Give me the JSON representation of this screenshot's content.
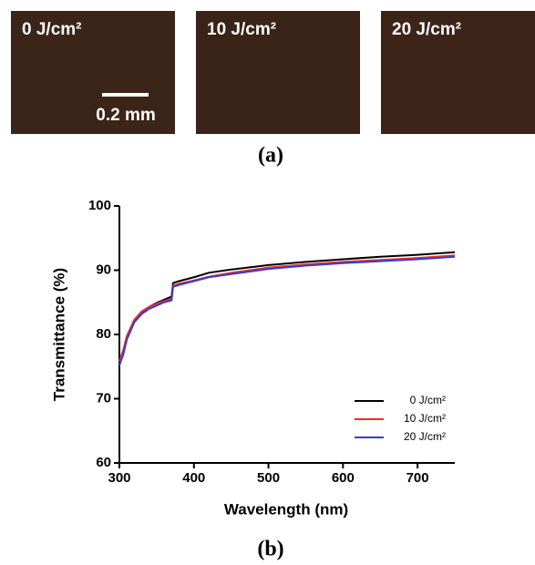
{
  "panel_a": {
    "label": "(a)",
    "images": [
      {
        "label": "0 J/cm²"
      },
      {
        "label": "10 J/cm²"
      },
      {
        "label": "20 J/cm²"
      }
    ],
    "scale_bar": "0.2 mm"
  },
  "panel_b": {
    "label": "(b)"
  },
  "chart_data": {
    "type": "line",
    "x_label": "Wavelength (nm)",
    "y_label": "Transmittance (%)",
    "x": [
      300,
      305,
      310,
      320,
      330,
      340,
      350,
      360,
      370,
      372,
      380,
      400,
      420,
      450,
      500,
      550,
      600,
      650,
      700,
      750
    ],
    "series": [
      {
        "name": "0 J/cm²",
        "color": "#000000",
        "values": [
          75.5,
          77.2,
          79.6,
          82.2,
          83.5,
          84.3,
          84.9,
          85.4,
          85.9,
          88.0,
          88.3,
          88.9,
          89.6,
          90.1,
          90.8,
          91.3,
          91.7,
          92.1,
          92.4,
          92.8
        ]
      },
      {
        "name": "10 J/cm²",
        "color": "#e8302c",
        "values": [
          75.8,
          77.5,
          79.8,
          82.3,
          83.6,
          84.3,
          84.8,
          85.2,
          85.6,
          87.6,
          87.9,
          88.4,
          89.0,
          89.6,
          90.4,
          90.9,
          91.3,
          91.6,
          91.9,
          92.3
        ]
      },
      {
        "name": "20 J/cm²",
        "color": "#3a3ad0",
        "values": [
          75.2,
          76.8,
          79.2,
          81.9,
          83.2,
          84.0,
          84.5,
          85.0,
          85.3,
          87.4,
          87.7,
          88.3,
          88.9,
          89.4,
          90.2,
          90.7,
          91.1,
          91.4,
          91.7,
          92.1
        ]
      }
    ],
    "xlim": [
      300,
      750
    ],
    "xticks": [
      300,
      400,
      500,
      600,
      700
    ],
    "ylim": [
      60,
      100
    ],
    "yticks": [
      60,
      70,
      80,
      90,
      100
    ],
    "grid": false,
    "legend": "lower right"
  }
}
